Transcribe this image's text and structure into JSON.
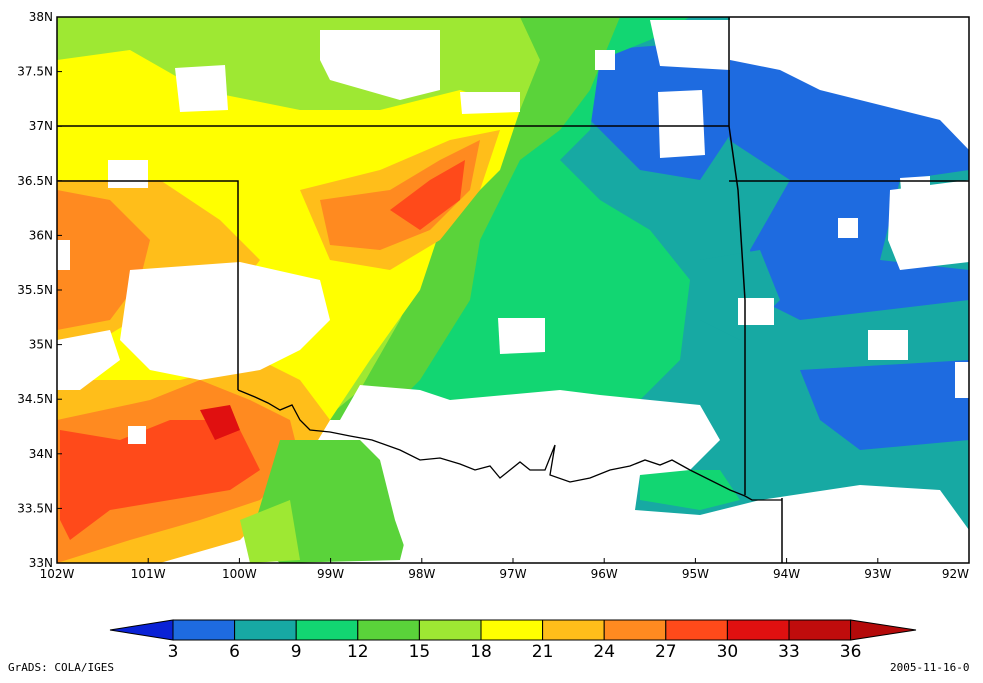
{
  "map": {
    "lat_labels": [
      "38N",
      "37.5N",
      "37N",
      "36.5N",
      "36N",
      "35.5N",
      "35N",
      "34.5N",
      "34N",
      "33.5N",
      "33N"
    ],
    "lon_labels": [
      "102W",
      "101W",
      "100W",
      "99W",
      "98W",
      "97W",
      "96W",
      "95W",
      "94W",
      "93W",
      "92W"
    ],
    "lat_range": [
      33,
      38
    ],
    "lon_range": [
      -102,
      -92
    ]
  },
  "colorbar": {
    "labels": [
      "3",
      "6",
      "9",
      "12",
      "15",
      "18",
      "21",
      "24",
      "27",
      "30",
      "33",
      "36"
    ],
    "colors": [
      "#0a22d6",
      "#1e6be0",
      "#17a9a3",
      "#12d672",
      "#5ad33a",
      "#9ee833",
      "#ffff00",
      "#ffbe1a",
      "#ff8a20",
      "#ff4a1a",
      "#e01010",
      "#c00c0c",
      "#b40a0a"
    ]
  },
  "footer": {
    "left": "GrADS: COLA/IGES",
    "right": "2005-11-16-0"
  }
}
